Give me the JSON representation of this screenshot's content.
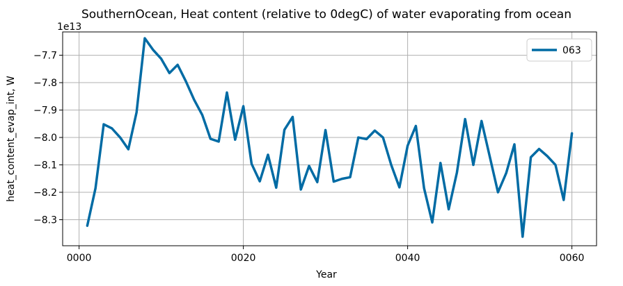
{
  "chart_data": {
    "type": "line",
    "title": "SouthernOcean, Heat content (relative to 0degC) of water evaporating from ocean",
    "xlabel": "Year",
    "ylabel": "heat_content_evap_int, W",
    "y_offset_label": "1e13",
    "xlim": [
      -2,
      63
    ],
    "ylim": [
      -8.395,
      -7.615
    ],
    "x_ticks": [
      0,
      20,
      40,
      60
    ],
    "x_tick_labels": [
      "0000",
      "0020",
      "0040",
      "0060"
    ],
    "y_ticks": [
      -8.3,
      -8.2,
      -8.1,
      -8.0,
      -7.9,
      -7.8,
      -7.7
    ],
    "y_tick_labels": [
      "−8.3",
      "−8.2",
      "−8.1",
      "−8.0",
      "−7.9",
      "−7.8",
      "−7.7"
    ],
    "grid": true,
    "legend_position": "top-right",
    "series": [
      {
        "name": "063",
        "color": "#006ba4",
        "x": [
          1,
          2,
          3,
          4,
          5,
          6,
          7,
          8,
          9,
          10,
          11,
          12,
          13,
          14,
          15,
          16,
          17,
          18,
          19,
          20,
          21,
          22,
          23,
          24,
          25,
          26,
          27,
          28,
          29,
          30,
          31,
          32,
          33,
          34,
          35,
          36,
          37,
          38,
          39,
          40,
          41,
          42,
          43,
          44,
          45,
          46,
          47,
          48,
          49,
          50,
          51,
          52,
          53,
          54,
          55,
          56,
          57,
          58,
          59,
          60
        ],
        "values": [
          -8.322,
          -8.185,
          -7.952,
          -7.967,
          -8.0,
          -8.043,
          -7.908,
          -7.638,
          -7.68,
          -7.713,
          -7.765,
          -7.735,
          -7.795,
          -7.862,
          -7.918,
          -8.005,
          -8.015,
          -7.836,
          -8.008,
          -7.886,
          -8.096,
          -8.16,
          -8.063,
          -8.183,
          -7.972,
          -7.925,
          -8.19,
          -8.104,
          -8.163,
          -7.973,
          -8.161,
          -8.151,
          -8.145,
          -8.0,
          -8.006,
          -7.975,
          -8.0,
          -8.1,
          -8.182,
          -8.03,
          -7.958,
          -8.185,
          -8.31,
          -8.093,
          -8.262,
          -8.128,
          -7.933,
          -8.1,
          -7.94,
          -8.07,
          -8.2,
          -8.13,
          -8.025,
          -8.362,
          -8.072,
          -8.042,
          -8.068,
          -8.1,
          -8.228,
          -7.985
        ]
      }
    ]
  }
}
